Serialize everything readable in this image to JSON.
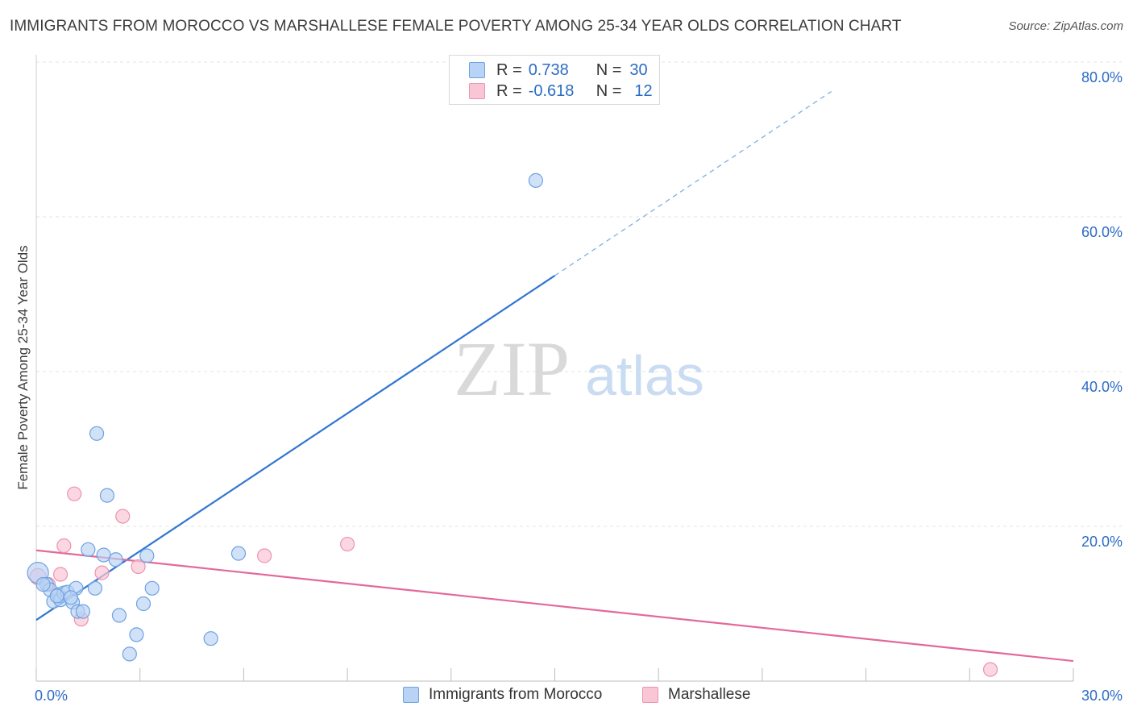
{
  "title": "IMMIGRANTS FROM MOROCCO VS MARSHALLESE FEMALE POVERTY AMONG 25-34 YEAR OLDS CORRELATION CHART",
  "source": "Source: ZipAtlas.com",
  "watermark": {
    "zip": "ZIP",
    "atlas": "atlas"
  },
  "legend": {
    "series1": {
      "r_label": "R =",
      "r_value": "0.738",
      "n_label": "N =",
      "n_value": "30"
    },
    "series2": {
      "r_label": "R =",
      "r_value": "-0.618",
      "n_label": "N =",
      "n_value": "12"
    }
  },
  "colors": {
    "blue_fill": "#b8d3f5",
    "blue_stroke": "#6ea2e0",
    "blue_line": "#2f76d2",
    "pink_fill": "#f9c6d6",
    "pink_stroke": "#ec93b2",
    "pink_line": "#e3699a",
    "grid": "#e3e3e3",
    "tick_label": "#2b6cc4"
  },
  "chart_data": {
    "type": "scatter",
    "title": "IMMIGRANTS FROM MOROCCO VS MARSHALLESE FEMALE POVERTY AMONG 25-34 YEAR OLDS CORRELATION CHART",
    "xlabel": "",
    "ylabel": "Female Poverty Among 25-34 Year Olds",
    "xlim": [
      0,
      30
    ],
    "ylim": [
      0,
      80
    ],
    "x_tick_labels": [
      "0.0%",
      "30.0%"
    ],
    "y_ticks": [
      20,
      40,
      60,
      80
    ],
    "y_tick_labels": [
      "20.0%",
      "40.0%",
      "60.0%",
      "80.0%"
    ],
    "series": [
      {
        "name": "Immigrants from Morocco",
        "color": "blue",
        "points": [
          [
            0.05,
            14.0
          ],
          [
            0.3,
            12.5
          ],
          [
            0.4,
            11.8
          ],
          [
            0.5,
            10.3
          ],
          [
            0.65,
            11.2
          ],
          [
            0.7,
            10.5
          ],
          [
            0.8,
            11.4
          ],
          [
            0.9,
            11.5
          ],
          [
            1.05,
            10.2
          ],
          [
            1.15,
            12.0
          ],
          [
            1.2,
            9.0
          ],
          [
            1.35,
            9.0
          ],
          [
            1.5,
            17.0
          ],
          [
            1.7,
            12.0
          ],
          [
            1.75,
            32.0
          ],
          [
            1.95,
            16.3
          ],
          [
            2.05,
            24.0
          ],
          [
            2.3,
            15.7
          ],
          [
            2.4,
            8.5
          ],
          [
            2.7,
            3.5
          ],
          [
            2.9,
            6.0
          ],
          [
            3.1,
            10.0
          ],
          [
            3.2,
            16.2
          ],
          [
            3.35,
            12.0
          ],
          [
            5.05,
            5.5
          ],
          [
            5.85,
            16.5
          ],
          [
            14.45,
            64.7
          ],
          [
            0.2,
            12.5
          ],
          [
            0.6,
            11.0
          ],
          [
            1.0,
            10.8
          ]
        ],
        "trend": {
          "x": [
            0,
            15
          ],
          "y": [
            7.9,
            52.4
          ],
          "dashed_to": {
            "x": [
              15,
              23
            ],
            "y": [
              52.4,
              76.2
            ]
          }
        }
      },
      {
        "name": "Marshallese",
        "color": "pink",
        "points": [
          [
            0.05,
            13.5
          ],
          [
            0.35,
            12.5
          ],
          [
            0.7,
            13.8
          ],
          [
            0.8,
            17.5
          ],
          [
            1.1,
            24.2
          ],
          [
            1.3,
            8.0
          ],
          [
            1.9,
            14.0
          ],
          [
            2.5,
            21.3
          ],
          [
            2.95,
            14.8
          ],
          [
            6.6,
            16.2
          ],
          [
            9.0,
            17.7
          ],
          [
            27.6,
            1.5
          ]
        ],
        "trend": {
          "x": [
            0,
            30
          ],
          "y": [
            16.9,
            2.6
          ]
        }
      }
    ]
  }
}
